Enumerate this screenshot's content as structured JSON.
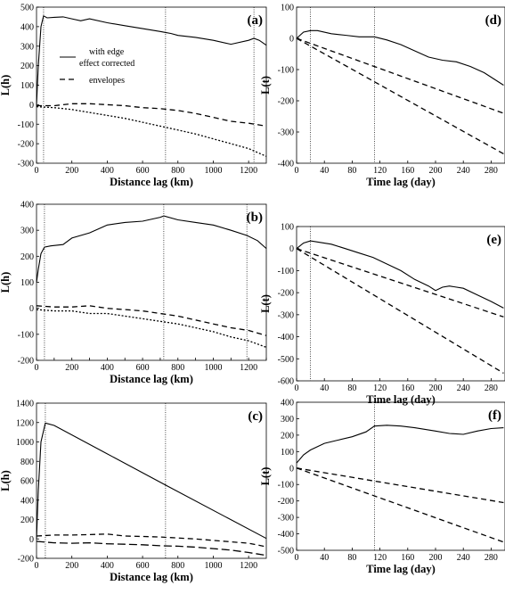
{
  "chart_data": [
    {
      "id": "a",
      "type": "line",
      "panel_label": "(a)",
      "xlabel": "Distance lag (km)",
      "ylabel": "L(h)",
      "xlim": [
        0,
        1300
      ],
      "ylim": [
        -300,
        500
      ],
      "xticks": [
        0,
        200,
        400,
        600,
        800,
        1000,
        1200
      ],
      "yticks": [
        -300,
        -200,
        -100,
        0,
        100,
        200,
        300,
        400,
        500
      ],
      "vlines": [
        40,
        730,
        1230
      ],
      "legend": {
        "entries": [
          "with edge",
          "effect corrected",
          "envelopes"
        ],
        "placement": "upper-left"
      },
      "series": [
        {
          "style": "solid",
          "x": [
            0,
            10,
            25,
            40,
            60,
            100,
            150,
            200,
            250,
            300,
            400,
            500,
            600,
            700,
            730,
            760,
            800,
            900,
            1000,
            1100,
            1200,
            1230,
            1260,
            1300
          ],
          "y": [
            0,
            200,
            400,
            455,
            445,
            448,
            450,
            440,
            430,
            440,
            420,
            405,
            390,
            375,
            370,
            365,
            355,
            345,
            330,
            310,
            330,
            340,
            330,
            305
          ]
        },
        {
          "style": "dashed",
          "x": [
            0,
            100,
            200,
            300,
            400,
            500,
            600,
            700,
            800,
            900,
            1000,
            1100,
            1200,
            1300
          ],
          "y": [
            -5,
            -5,
            5,
            5,
            0,
            -5,
            -15,
            -20,
            -30,
            -45,
            -65,
            -85,
            -95,
            -110
          ]
        },
        {
          "style": "dotted",
          "x": [
            0,
            100,
            200,
            300,
            400,
            500,
            600,
            700,
            800,
            900,
            1000,
            1100,
            1200,
            1300
          ],
          "y": [
            -10,
            -15,
            -25,
            -40,
            -55,
            -70,
            -90,
            -110,
            -130,
            -150,
            -175,
            -200,
            -225,
            -265
          ]
        }
      ]
    },
    {
      "id": "d",
      "type": "line",
      "panel_label": "(d)",
      "xlabel": "Time lag (day)",
      "ylabel": "L(t)",
      "xlim": [
        0,
        300
      ],
      "ylim": [
        -400,
        100
      ],
      "xticks": [
        0,
        40,
        80,
        120,
        160,
        200,
        240,
        280
      ],
      "yticks": [
        -400,
        -300,
        -200,
        -100,
        0,
        100
      ],
      "vlines": [
        20,
        112
      ],
      "series": [
        {
          "style": "solid",
          "x": [
            0,
            10,
            20,
            30,
            50,
            70,
            90,
            112,
            130,
            150,
            170,
            190,
            210,
            230,
            250,
            270,
            298
          ],
          "y": [
            0,
            20,
            25,
            25,
            15,
            10,
            5,
            5,
            -5,
            -20,
            -40,
            -60,
            -70,
            -75,
            -90,
            -110,
            -150
          ]
        },
        {
          "style": "dashed",
          "x": [
            0,
            298
          ],
          "y": [
            0,
            -240
          ]
        },
        {
          "style": "dashed",
          "x": [
            0,
            298
          ],
          "y": [
            0,
            -370
          ]
        }
      ]
    },
    {
      "id": "b",
      "type": "line",
      "panel_label": "(b)",
      "xlabel": "Distance lag (km)",
      "ylabel": "L(h)",
      "xlim": [
        0,
        1300
      ],
      "ylim": [
        -200,
        400
      ],
      "xticks": [
        0,
        100,
        200,
        300,
        400,
        500,
        600,
        700,
        800,
        900,
        1000,
        1100,
        1200,
        1300
      ],
      "xtick_labels": [
        "0",
        "",
        "200",
        "",
        "400",
        "",
        "600",
        "",
        "800",
        "",
        "1000",
        "",
        "1200",
        ""
      ],
      "yticks": [
        -200,
        -100,
        0,
        100,
        200,
        300,
        400
      ],
      "vlines": [
        45,
        720,
        1190
      ],
      "series": [
        {
          "style": "solid",
          "x": [
            0,
            10,
            25,
            45,
            80,
            150,
            200,
            300,
            400,
            500,
            600,
            700,
            720,
            800,
            900,
            1000,
            1100,
            1190,
            1250,
            1300
          ],
          "y": [
            100,
            150,
            210,
            235,
            240,
            245,
            270,
            290,
            320,
            330,
            335,
            350,
            355,
            340,
            330,
            320,
            300,
            280,
            260,
            230
          ]
        },
        {
          "style": "dashed",
          "x": [
            0,
            100,
            200,
            300,
            400,
            500,
            600,
            700,
            800,
            900,
            1000,
            1100,
            1200,
            1300
          ],
          "y": [
            10,
            5,
            5,
            10,
            0,
            -5,
            -10,
            -20,
            -30,
            -45,
            -60,
            -75,
            -85,
            -105
          ]
        },
        {
          "style": "dotted",
          "x": [
            0,
            100,
            200,
            300,
            400,
            500,
            600,
            700,
            800,
            900,
            1000,
            1100,
            1200,
            1300
          ],
          "y": [
            -5,
            -10,
            -10,
            -20,
            -20,
            -30,
            -40,
            -50,
            -60,
            -75,
            -90,
            -110,
            -125,
            -150
          ]
        }
      ]
    },
    {
      "id": "e",
      "type": "line",
      "panel_label": "(e)",
      "xlabel": "Time lag (day)",
      "ylabel": "L(t)",
      "xlim": [
        0,
        300
      ],
      "ylim": [
        -600,
        100
      ],
      "xticks": [
        0,
        40,
        80,
        120,
        160,
        200,
        240,
        280
      ],
      "yticks": [
        -600,
        -500,
        -400,
        -300,
        -200,
        -100,
        0,
        100
      ],
      "vlines": [
        20
      ],
      "series": [
        {
          "style": "solid",
          "x": [
            0,
            10,
            20,
            30,
            50,
            70,
            90,
            110,
            130,
            150,
            170,
            190,
            200,
            210,
            220,
            240,
            260,
            280,
            298
          ],
          "y": [
            0,
            25,
            35,
            30,
            20,
            0,
            -20,
            -40,
            -70,
            -100,
            -140,
            -170,
            -190,
            -175,
            -170,
            -180,
            -210,
            -240,
            -270
          ]
        },
        {
          "style": "dashed",
          "x": [
            0,
            298
          ],
          "y": [
            0,
            -310
          ]
        },
        {
          "style": "dashed",
          "x": [
            0,
            298
          ],
          "y": [
            0,
            -565
          ]
        }
      ]
    },
    {
      "id": "c",
      "type": "line",
      "panel_label": "(c)",
      "xlabel": "Distance lag (km)",
      "ylabel": "L(h)",
      "xlim": [
        0,
        1300
      ],
      "ylim": [
        -200,
        1400
      ],
      "xticks": [
        0,
        200,
        400,
        600,
        800,
        1000,
        1200
      ],
      "yticks": [
        -200,
        0,
        200,
        400,
        600,
        800,
        1000,
        1200,
        1400
      ],
      "vlines": [
        50,
        730
      ],
      "series": [
        {
          "style": "solid",
          "x": [
            0,
            10,
            25,
            50,
            100,
            730,
            1300
          ],
          "y": [
            0,
            500,
            1000,
            1195,
            1170,
            555,
            5
          ]
        },
        {
          "style": "dashed",
          "x": [
            0,
            100,
            200,
            300,
            400,
            500,
            600,
            700,
            800,
            900,
            1000,
            1100,
            1200,
            1300
          ],
          "y": [
            30,
            40,
            40,
            45,
            50,
            30,
            25,
            20,
            10,
            0,
            -15,
            -30,
            -45,
            -80
          ]
        },
        {
          "style": "longdash",
          "x": [
            0,
            100,
            200,
            300,
            400,
            500,
            600,
            700,
            800,
            900,
            1000,
            1100,
            1200,
            1300
          ],
          "y": [
            -25,
            -40,
            -45,
            -40,
            -50,
            -55,
            -60,
            -70,
            -75,
            -85,
            -100,
            -115,
            -140,
            -170
          ]
        }
      ]
    },
    {
      "id": "f",
      "type": "line",
      "panel_label": "(f)",
      "xlabel": "Time lag (day)",
      "ylabel": "L(t)",
      "xlim": [
        0,
        300
      ],
      "ylim": [
        -500,
        400
      ],
      "xticks": [
        0,
        40,
        80,
        120,
        160,
        200,
        240,
        280
      ],
      "yticks": [
        -500,
        -400,
        -300,
        -200,
        -100,
        0,
        100,
        200,
        300,
        400
      ],
      "vlines": [
        112
      ],
      "series": [
        {
          "style": "solid",
          "x": [
            0,
            10,
            20,
            40,
            60,
            80,
            100,
            112,
            130,
            150,
            170,
            200,
            220,
            240,
            260,
            280,
            298
          ],
          "y": [
            30,
            80,
            110,
            150,
            170,
            190,
            220,
            255,
            260,
            255,
            245,
            225,
            210,
            205,
            225,
            240,
            245
          ]
        },
        {
          "style": "dashed",
          "x": [
            0,
            298
          ],
          "y": [
            0,
            -210
          ]
        },
        {
          "style": "dashed",
          "x": [
            0,
            298
          ],
          "y": [
            0,
            -450
          ]
        }
      ]
    }
  ]
}
